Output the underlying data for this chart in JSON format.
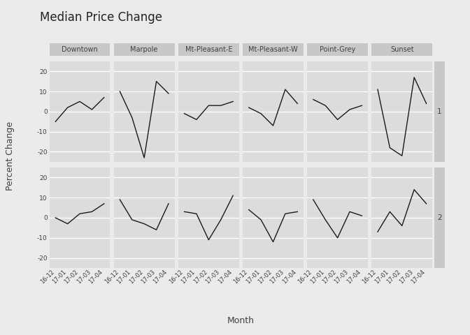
{
  "title": "Median Price Change",
  "xlabel": "Month",
  "ylabel": "Percent Change",
  "x_labels": [
    "16-12",
    "17-01",
    "17-02",
    "17-03",
    "17-04"
  ],
  "neighbourhoods": [
    "Downtown",
    "Marpole",
    "Mt-Pleasant-E",
    "Mt-Pleasant-W",
    "Point-Grey",
    "Sunset"
  ],
  "row_labels": [
    "1",
    "2"
  ],
  "ylim": [
    -25,
    25
  ],
  "yticks": [
    -20,
    -10,
    0,
    10,
    20
  ],
  "data": {
    "1": {
      "Downtown": [
        -5,
        2,
        5,
        1,
        7
      ],
      "Marpole": [
        10,
        -3,
        -23,
        15,
        9
      ],
      "Mt-Pleasant-E": [
        -1,
        -4,
        3,
        3,
        5
      ],
      "Mt-Pleasant-W": [
        2,
        -1,
        -7,
        11,
        4
      ],
      "Point-Grey": [
        6,
        3,
        -4,
        1,
        3
      ],
      "Sunset": [
        11,
        -18,
        -22,
        17,
        4
      ]
    },
    "2": {
      "Downtown": [
        0,
        -3,
        2,
        3,
        7
      ],
      "Marpole": [
        9,
        -1,
        -3,
        -6,
        7
      ],
      "Mt-Pleasant-E": [
        3,
        2,
        -11,
        -1,
        11
      ],
      "Mt-Pleasant-W": [
        4,
        -1,
        -12,
        2,
        3
      ],
      "Point-Grey": [
        9,
        -1,
        -10,
        3,
        1
      ],
      "Sunset": [
        -7,
        3,
        -4,
        14,
        7
      ]
    }
  },
  "panel_bg": "#EBEBEB",
  "plot_bg": "#DCDCDC",
  "grid_color": "#FFFFFF",
  "line_color": "#1A1A1A",
  "strip_bg": "#C8C8C8",
  "strip_text_color": "#404040",
  "row_label_bg": "#C8C8C8",
  "title_fontsize": 12,
  "strip_fontsize": 7.0,
  "tick_fontsize": 6.5,
  "xtick_fontsize": 6.0,
  "axis_label_fontsize": 9
}
